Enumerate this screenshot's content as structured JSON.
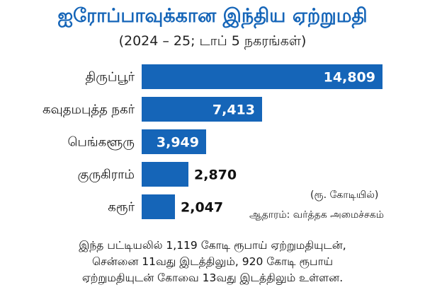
{
  "title": "ஐரோப்பாவுக்கான இந்திய ஏற்றுமதி",
  "subtitle": "(2024 – 25; டாப் 5 நகரங்கள்)",
  "unit_note": "(ரூ. கோடியில்)",
  "source": "ஆதாரம்: வர்த்தக அமைச்சகம்",
  "footnote": [
    "இந்த பட்டியலில் 1,119 கோடி ரூபாய் ஏற்றுமதியுடன்,",
    "சென்னை 11வது இடத்திலும், 920 கோடி ரூபாய்",
    "ஏற்றுமதியுடன் கோவை 13வது இடத்திலும் உள்ளன."
  ],
  "colors": {
    "title": "#1565b8",
    "bar": "#1565b8"
  },
  "chart_data": {
    "type": "bar",
    "orientation": "horizontal",
    "categories": [
      "திருப்பூர்",
      "கவுதமபுத்த நகர்",
      "பெங்களூரு",
      "குருகிராம்",
      "கரூர்"
    ],
    "values": [
      14809,
      7413,
      3949,
      2870,
      2047
    ],
    "value_labels": [
      "14,809",
      "7,413",
      "3,949",
      "2,870",
      "2,047"
    ],
    "grid": false,
    "legend": "none"
  }
}
